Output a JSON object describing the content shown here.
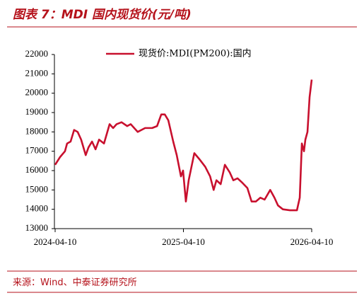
{
  "title": "图表 7：MDI 国内现货价(元/吨)",
  "source": "来源：Wind、中泰证券研究所",
  "chart_data": {
    "type": "line",
    "x": [
      "2024-04-10",
      "2024-04-24",
      "2024-05-08",
      "2024-05-14",
      "2024-05-24",
      "2024-06-03",
      "2024-06-13",
      "2024-06-23",
      "2024-07-06",
      "2024-07-14",
      "2024-07-24",
      "2024-08-03",
      "2024-08-13",
      "2024-08-27",
      "2024-09-12",
      "2024-09-22",
      "2024-10-02",
      "2024-10-16",
      "2024-11-01",
      "2024-11-11",
      "2024-12-01",
      "2024-12-22",
      "2025-01-11",
      "2025-01-25",
      "2025-02-06",
      "2025-02-16",
      "2025-02-26",
      "2025-03-12",
      "2025-03-22",
      "2025-04-03",
      "2025-04-09",
      "2025-04-17",
      "2025-04-25",
      "2025-05-11",
      "2025-05-25",
      "2025-06-11",
      "2025-06-25",
      "2025-07-05",
      "2025-07-13",
      "2025-07-25",
      "2025-08-06",
      "2025-08-20",
      "2025-08-30",
      "2025-09-11",
      "2025-09-23",
      "2025-10-09",
      "2025-10-21",
      "2025-11-02",
      "2025-11-15",
      "2025-11-27",
      "2025-12-13",
      "2025-12-25",
      "2026-01-04",
      "2026-01-18",
      "2026-02-07",
      "2026-02-27",
      "2026-03-07",
      "2026-03-13",
      "2026-03-19",
      "2026-03-23",
      "2026-03-29",
      "2026-04-04",
      "2026-04-10"
    ],
    "series": [
      {
        "name": "现货价:MDI(PM200):国内",
        "color": "#c8102e",
        "values": [
          16300,
          16700,
          17000,
          17400,
          17500,
          18100,
          18000,
          17600,
          16800,
          17200,
          17500,
          17100,
          17600,
          17400,
          18400,
          18200,
          18400,
          18500,
          18300,
          18400,
          18000,
          18200,
          18200,
          18300,
          18900,
          18900,
          18600,
          17500,
          16800,
          15700,
          16000,
          14400,
          15500,
          16900,
          16600,
          16200,
          15700,
          15000,
          15500,
          15300,
          16300,
          15900,
          15500,
          15600,
          15400,
          15100,
          14400,
          14400,
          14600,
          14500,
          15000,
          14600,
          14200,
          14000,
          13950,
          13950,
          14600,
          17400,
          17000,
          17600,
          18000,
          19800,
          20700
        ]
      }
    ],
    "xlim": [
      "2024-04-10",
      "2026-04-10"
    ],
    "xticks": [
      "2024-04-10",
      "2025-04-10",
      "2026-04-10"
    ],
    "ylim": [
      13000,
      22000
    ],
    "yticks": [
      13000,
      14000,
      15000,
      16000,
      17000,
      18000,
      19000,
      20000,
      21000,
      22000
    ]
  }
}
